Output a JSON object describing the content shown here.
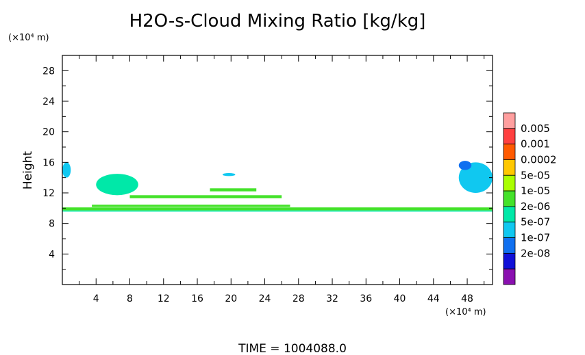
{
  "chart_data": {
    "type": "heatmap",
    "title": "H2O-s-Cloud Mixing Ratio [kg/kg]",
    "ylabel": "Height",
    "y_unit": "(×10⁴ m)",
    "x_unit": "(×10⁴ m)",
    "footer": "TIME  =  1004088.0",
    "xlim": [
      0,
      51
    ],
    "ylim": [
      0,
      30
    ],
    "x_ticks": [
      "4",
      "8",
      "12",
      "16",
      "20",
      "24",
      "28",
      "32",
      "36",
      "40",
      "44",
      "48"
    ],
    "y_ticks": [
      "4",
      "8",
      "12",
      "16",
      "20",
      "24",
      "28"
    ],
    "legend": {
      "placement": "right",
      "labels": [
        "0.005",
        "0.001",
        "0.0002",
        "5e-05",
        "1e-05",
        "2e-06",
        "5e-07",
        "1e-07",
        "2e-08"
      ],
      "colors": [
        "#ff9f9f",
        "#ff4040",
        "#ff5a00",
        "#ffc800",
        "#aaff00",
        "#44e22a",
        "#00e8a8",
        "#10c8f0",
        "#1070f0",
        "#1010d8",
        "#8a10b0"
      ]
    },
    "series": [
      {
        "level": "1e-05",
        "region": "main-band",
        "x": [
          0,
          51
        ],
        "y": [
          9.7,
          10.1
        ]
      },
      {
        "level": "2e-06",
        "region": "main-band-edge",
        "x": [
          0,
          51
        ],
        "y": [
          9.55,
          9.7
        ]
      },
      {
        "level": "1e-05",
        "region": "layer-10.3",
        "x": [
          3.5,
          27
        ],
        "y": [
          10.15,
          10.45
        ]
      },
      {
        "level": "1e-05",
        "region": "layer-11.5",
        "x": [
          8,
          26
        ],
        "y": [
          11.3,
          11.7
        ]
      },
      {
        "level": "1e-05",
        "region": "layer-12.4",
        "x": [
          17.5,
          23
        ],
        "y": [
          12.2,
          12.6
        ]
      },
      {
        "level": "2e-06",
        "region": "blob-left",
        "x": [
          4,
          9
        ],
        "y": [
          11.7,
          14.5
        ]
      },
      {
        "level": "5e-07",
        "region": "blob-left-edge",
        "x": [
          0,
          1
        ],
        "y": [
          14,
          16
        ]
      },
      {
        "level": "5e-07",
        "region": "blob-20",
        "x": [
          19,
          20.5
        ],
        "y": [
          14.2,
          14.6
        ]
      },
      {
        "level": "5e-07",
        "region": "blob-right",
        "x": [
          47,
          51
        ],
        "y": [
          12,
          16
        ]
      },
      {
        "level": "1e-07",
        "region": "blob-right-top",
        "x": [
          47,
          48.5
        ],
        "y": [
          15,
          16.2
        ]
      }
    ]
  }
}
